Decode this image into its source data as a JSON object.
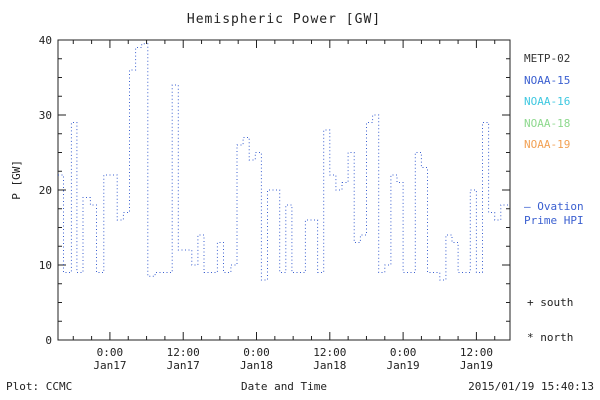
{
  "title": "Hemispheric Power [GW]",
  "y_axis": {
    "label": "P [GW]"
  },
  "footer": {
    "left": "Plot: CCMC",
    "center": "Date and Time",
    "right": "2015/01/19 15:40:13"
  },
  "legend": {
    "satellites": [
      {
        "label": "METP-02",
        "color": "#333333"
      },
      {
        "label": "NOAA-15",
        "color": "#3a5fd0"
      },
      {
        "label": "NOAA-16",
        "color": "#3fc8e0"
      },
      {
        "label": "NOAA-18",
        "color": "#8ed98e"
      },
      {
        "label": "NOAA-19",
        "color": "#f2a154"
      }
    ],
    "ovation_line1": "— Ovation",
    "ovation_line2": "Prime HPI",
    "ovation_color": "#3a5fd0",
    "south": "+ south",
    "north": "* north"
  },
  "chart_data": {
    "type": "line",
    "mode": "step",
    "line_style": "dotted",
    "color": "#3a5fd0",
    "title": "Hemispheric Power [GW]",
    "xlabel": "Date and Time",
    "ylabel": "P [GW]",
    "ylim": [
      0,
      40
    ],
    "xlim_hours": [
      -8.5,
      65.5
    ],
    "y_ticks": [
      0,
      10,
      20,
      30,
      40
    ],
    "minor_y": 2.5,
    "minor_x_hours": 3,
    "x_ticks": [
      {
        "hour": 0,
        "time": "0:00",
        "date": "Jan17"
      },
      {
        "hour": 12,
        "time": "12:00",
        "date": "Jan17"
      },
      {
        "hour": 24,
        "time": "0:00",
        "date": "Jan18"
      },
      {
        "hour": 36,
        "time": "12:00",
        "date": "Jan18"
      },
      {
        "hour": 48,
        "time": "0:00",
        "date": "Jan19"
      },
      {
        "hour": 60,
        "time": "12:00",
        "date": "Jan19"
      }
    ],
    "series_hours": [
      -8.5,
      -7.6,
      -6.3,
      -5.4,
      -4.4,
      -3.2,
      -2.2,
      -1.0,
      0.2,
      1.2,
      2.2,
      3.2,
      4.2,
      5.2,
      6.2,
      7.4,
      9.0,
      10.2,
      11.2,
      12.4,
      13.4,
      14.4,
      15.4,
      16.6,
      17.6,
      18.6,
      19.8,
      20.8,
      21.8,
      22.8,
      23.8,
      24.8,
      25.8,
      26.8,
      27.8,
      28.8,
      29.8,
      31.0,
      32.0,
      33.0,
      34.0,
      35.0,
      36.0,
      37.0,
      38.0,
      39.0,
      40.0,
      41.0,
      42.0,
      43.0,
      44.0,
      45.0,
      46.0,
      47.0,
      48.0,
      49.0,
      50.0,
      51.0,
      52.0,
      53.0,
      54.0,
      55.0,
      56.0,
      57.0,
      58.0,
      59.0,
      60.0,
      61.0,
      62.0,
      63.0,
      64.0,
      65.4
    ],
    "series_values": [
      22,
      9,
      29,
      9,
      19,
      18,
      9,
      22,
      22,
      16,
      17,
      36,
      39,
      39.5,
      8.5,
      9,
      9,
      34,
      12,
      12,
      10,
      14,
      9,
      9,
      13,
      9,
      10,
      26,
      27,
      24,
      25,
      8,
      20,
      20,
      9,
      18,
      9,
      9,
      16,
      16,
      9,
      28,
      22,
      20,
      21,
      25,
      13,
      14,
      29,
      30,
      9,
      10,
      22,
      21,
      9,
      9,
      25,
      23,
      9,
      9,
      8,
      14,
      13,
      9,
      9,
      20,
      9,
      29,
      17,
      16,
      18,
      18
    ]
  }
}
